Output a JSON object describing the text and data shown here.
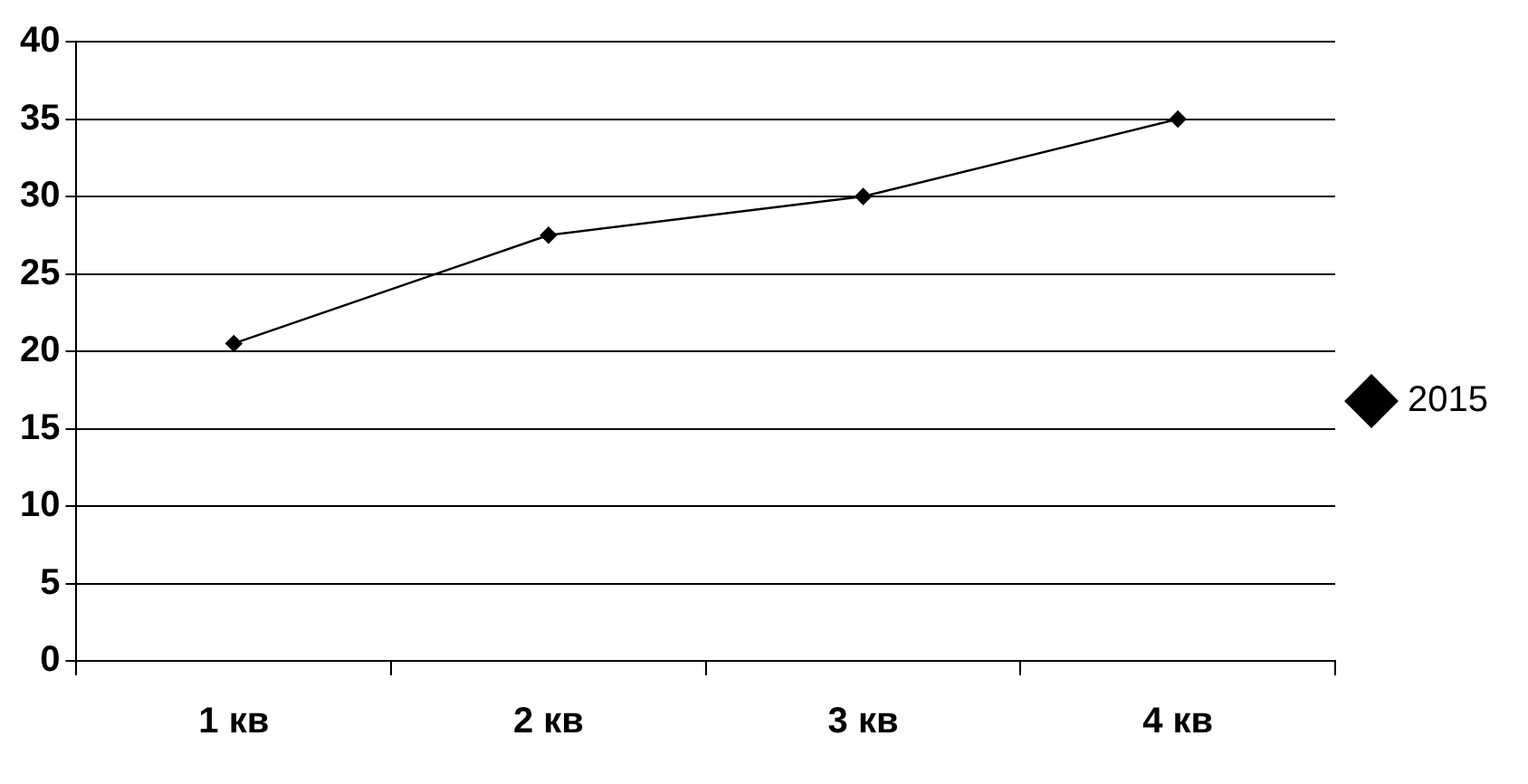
{
  "chart_data": {
    "type": "line",
    "categories": [
      "1 кв",
      "2 кв",
      "3 кв",
      "4 кв"
    ],
    "series": [
      {
        "name": "2015",
        "color": "#000000",
        "values": [
          20.5,
          27.5,
          30,
          35
        ]
      }
    ],
    "ylim": [
      0,
      40
    ],
    "yticks": [
      0,
      5,
      10,
      15,
      20,
      25,
      30,
      35,
      40
    ],
    "grid": "y",
    "legend": "right",
    "marker": "diamond",
    "line_style": "solid"
  }
}
